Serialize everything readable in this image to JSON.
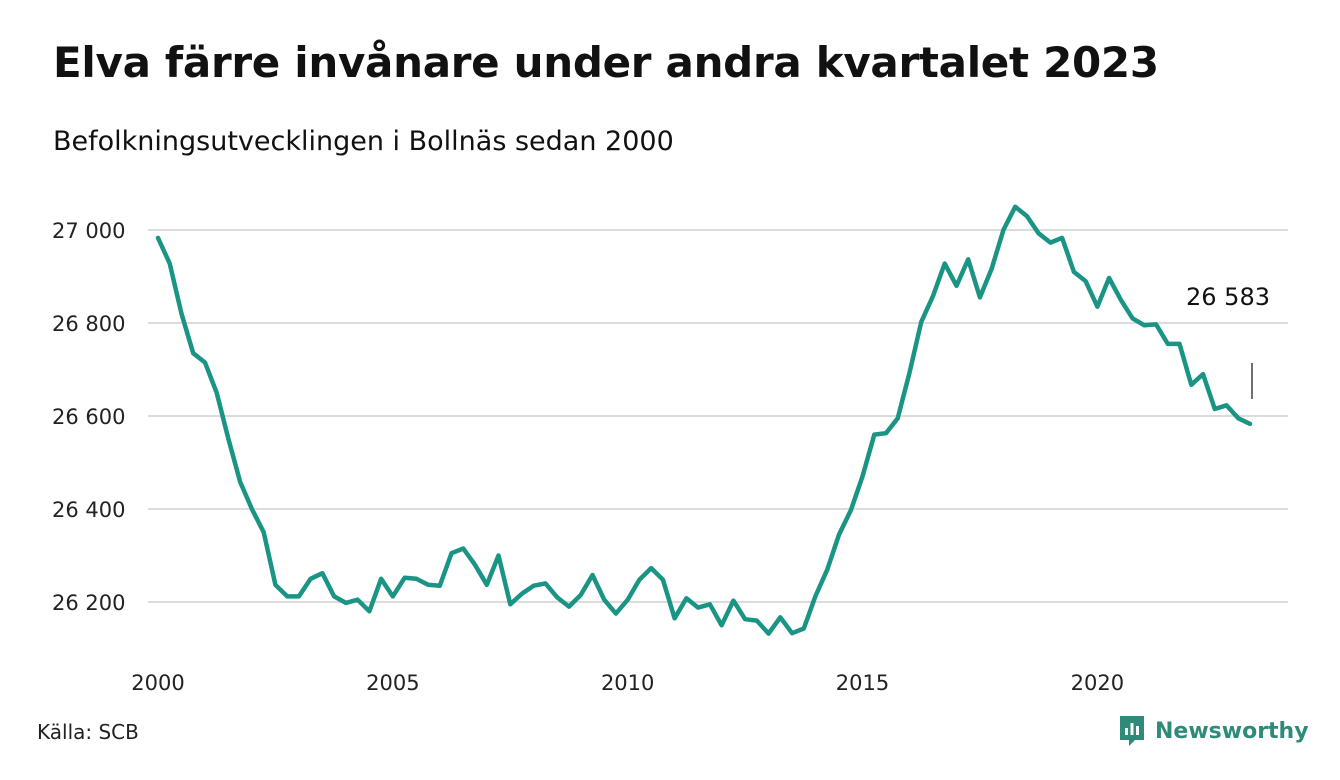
{
  "header": {
    "title": "Elva färre invånare under andra kvartalet 2023",
    "subtitle": "Befolkningsutvecklingen i Bollnäs sedan 2000"
  },
  "footer": {
    "source": "Källa: SCB",
    "brand": "Newsworthy"
  },
  "colors": {
    "line": "#1a9484",
    "grid": "#dcdcdc",
    "brand": "#2e8b7a"
  },
  "chart_data": {
    "type": "line",
    "title": "Elva färre invånare under andra kvartalet 2023",
    "subtitle": "Befolkningsutvecklingen i Bollnäs sedan 2000",
    "xlabel": "",
    "ylabel": "",
    "x_unit": "quarter",
    "xlim": [
      2000,
      2023.25
    ],
    "ylim": [
      26090,
      27070
    ],
    "x_ticks": [
      2000,
      2005,
      2010,
      2015,
      2020
    ],
    "x_tick_labels": [
      "2000",
      "2005",
      "2010",
      "2015",
      "2020"
    ],
    "y_ticks": [
      26200,
      26400,
      26600,
      26800,
      27000
    ],
    "y_tick_labels": [
      "26 200",
      "26 400",
      "26 600",
      "26 800",
      "27 000"
    ],
    "grid": "horizontal",
    "legend": "none",
    "series": [
      {
        "start": 2000,
        "step": 0.25,
        "values": [
          26983,
          26928,
          26820,
          26735,
          26715,
          26650,
          26550,
          26458,
          26400,
          26350,
          26237,
          26212,
          26212,
          26250,
          26262,
          26212,
          26198,
          26205,
          26180,
          26250,
          26212,
          26252,
          26250,
          26237,
          26235,
          26305,
          26315,
          26280,
          26237,
          26300,
          26195,
          26218,
          26235,
          26240,
          26210,
          26190,
          26215,
          26258,
          26205,
          26175,
          26205,
          26248,
          26273,
          26248,
          26165,
          26208,
          26188,
          26195,
          26150,
          26203,
          26163,
          26160,
          26132,
          26167,
          26133,
          26143,
          26213,
          26270,
          26345,
          26397,
          26470,
          26560,
          26563,
          26595,
          26693,
          26802,
          26858,
          26928,
          26880,
          26937,
          26855,
          26917,
          27000,
          27050,
          27030,
          26993,
          26973,
          26983,
          26910,
          26890,
          26835,
          26897,
          26850,
          26810,
          26795,
          26797,
          26755,
          26755,
          26667,
          26690,
          26615,
          26623,
          26595,
          26583
        ]
      }
    ],
    "annotation": {
      "label": "26 583"
    }
  }
}
